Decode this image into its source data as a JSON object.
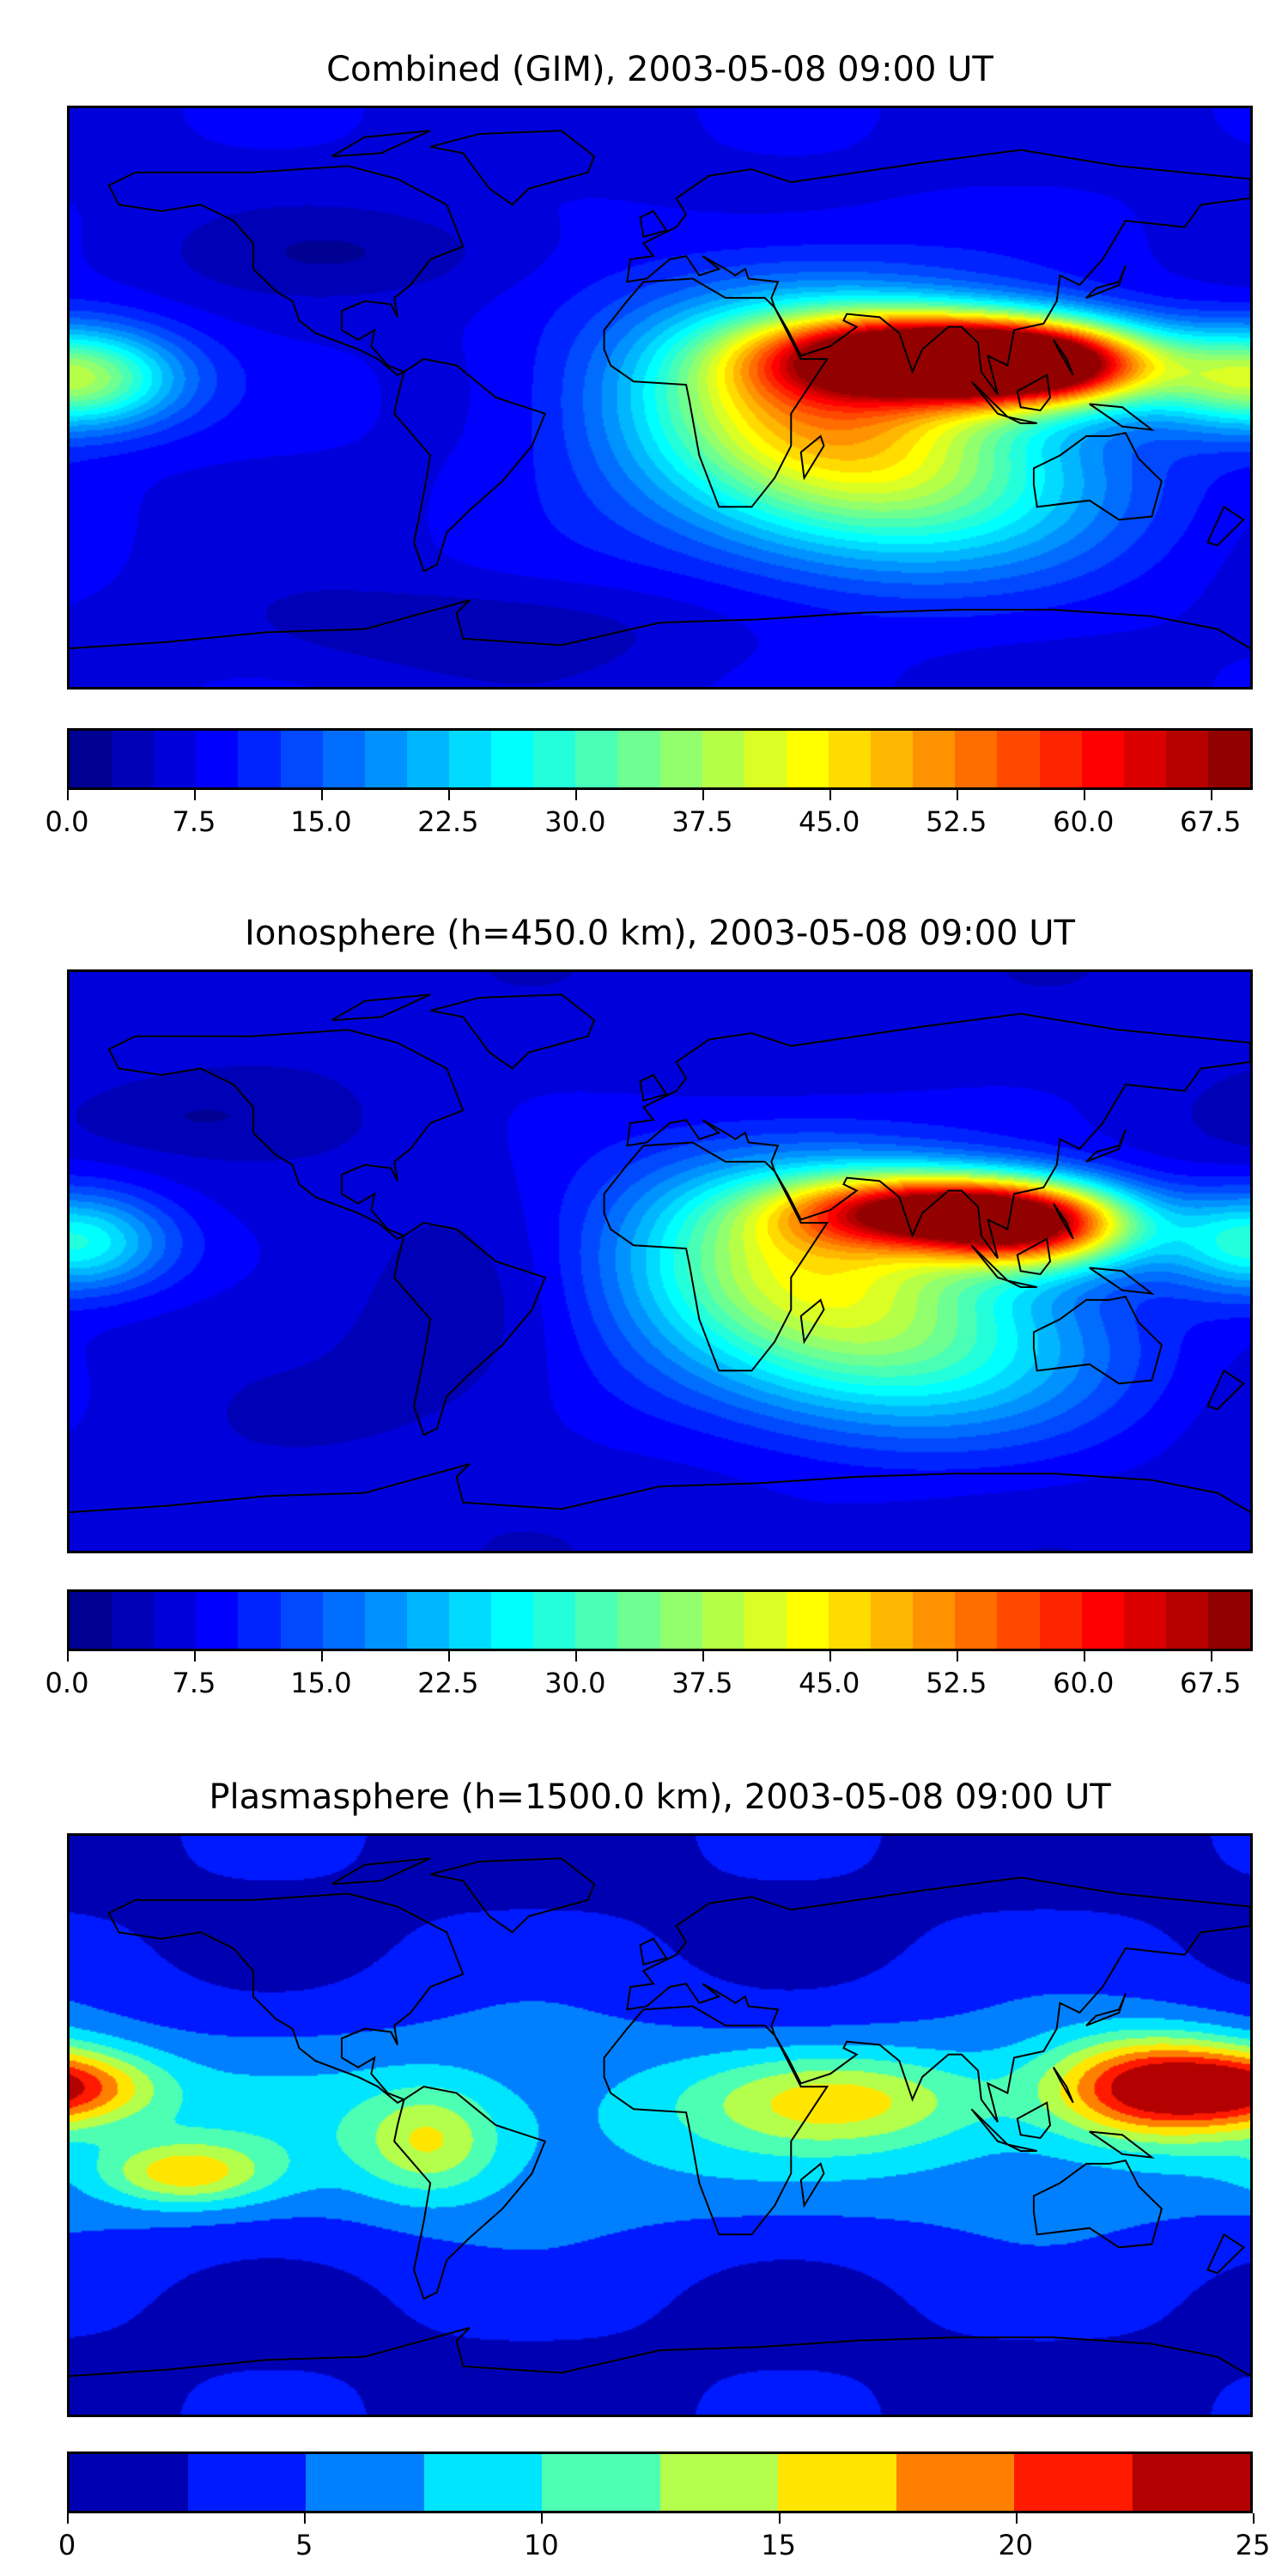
{
  "chart_data": [
    {
      "type": "heatmap",
      "title": "Combined (GIM), 2003-05-08 09:00 UT",
      "projection": "equirectangular",
      "lon_range": [
        -180,
        180
      ],
      "lat_range": [
        -90,
        90
      ],
      "colormap": "jet",
      "levels": {
        "min": 0,
        "max": 70,
        "step": 2.5
      },
      "colorbar_ticks": [
        "0.0",
        "7.5",
        "15.0",
        "22.5",
        "30.0",
        "37.5",
        "45.0",
        "52.5",
        "60.0",
        "67.5"
      ],
      "base_value": 7,
      "features": [
        {
          "lon": 82,
          "lat": 13,
          "value": 65,
          "sx": 32,
          "sy": 9
        },
        {
          "lon": 118,
          "lat": 10,
          "value": 58,
          "sx": 24,
          "sy": 9
        },
        {
          "lon": 45,
          "lat": 2,
          "value": 42,
          "sx": 40,
          "sy": 22
        },
        {
          "lon": 75,
          "lat": -28,
          "value": 30,
          "sx": 45,
          "sy": 20
        },
        {
          "lon": -178,
          "lat": 6,
          "value": 38,
          "sx": 22,
          "sy": 11
        },
        {
          "lon": -90,
          "lat": 45,
          "value": 3,
          "sx": 40,
          "sy": 10
        },
        {
          "lon": -60,
          "lat": -72,
          "value": 3,
          "sx": 50,
          "sy": 10
        }
      ]
    },
    {
      "type": "heatmap",
      "title": "Ionosphere  (h=450.0 km), 2003-05-08 09:00 UT",
      "projection": "equirectangular",
      "lon_range": [
        -180,
        180
      ],
      "lat_range": [
        -90,
        90
      ],
      "colormap": "jet",
      "levels": {
        "min": 0,
        "max": 70,
        "step": 2.5
      },
      "colorbar_ticks": [
        "0.0",
        "7.5",
        "15.0",
        "22.5",
        "30.0",
        "37.5",
        "45.0",
        "52.5",
        "60.0",
        "67.5"
      ],
      "base_value": 6,
      "features": [
        {
          "lon": 85,
          "lat": 16,
          "value": 55,
          "sx": 30,
          "sy": 8
        },
        {
          "lon": 115,
          "lat": 10,
          "value": 48,
          "sx": 22,
          "sy": 9
        },
        {
          "lon": 42,
          "lat": 3,
          "value": 36,
          "sx": 40,
          "sy": 22
        },
        {
          "lon": 75,
          "lat": -28,
          "value": 27,
          "sx": 45,
          "sy": 20
        },
        {
          "lon": -178,
          "lat": 6,
          "value": 28,
          "sx": 20,
          "sy": 11
        },
        {
          "lon": -60,
          "lat": -20,
          "value": 3,
          "sx": 25,
          "sy": 25
        },
        {
          "lon": -150,
          "lat": 45,
          "value": 3,
          "sx": 30,
          "sy": 8
        }
      ]
    },
    {
      "type": "heatmap",
      "title": "Plasmasphere (h=1500.0 km), 2003-05-08 09:00 UT",
      "projection": "equirectangular",
      "lon_range": [
        -180,
        180
      ],
      "lat_range": [
        -90,
        90
      ],
      "colormap": "jet",
      "levels": {
        "min": 0,
        "max": 25,
        "step": 2.5
      },
      "colorbar_ticks": [
        "0",
        "5",
        "10",
        "15",
        "20",
        "25"
      ],
      "base_value": 2,
      "features": [
        {
          "lon": 0,
          "lat": 0,
          "value": 8,
          "sx": 400,
          "sy": 26
        },
        {
          "lon": 150,
          "lat": 12,
          "value": 20,
          "sx": 22,
          "sy": 11
        },
        {
          "lon": -178,
          "lat": 12,
          "value": 13,
          "sx": 18,
          "sy": 8
        },
        {
          "lon": -145,
          "lat": -15,
          "value": 12,
          "sx": 18,
          "sy": 7
        },
        {
          "lon": 55,
          "lat": 8,
          "value": 10,
          "sx": 30,
          "sy": 10
        },
        {
          "lon": -70,
          "lat": -5,
          "value": 10,
          "sx": 15,
          "sy": 12
        }
      ]
    }
  ]
}
